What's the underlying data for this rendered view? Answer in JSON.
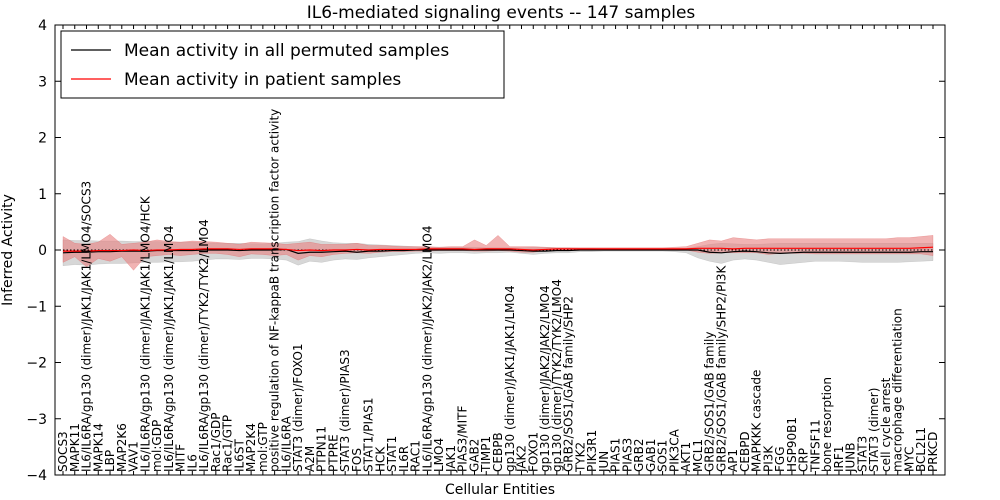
{
  "chart_data": {
    "type": "line",
    "title": "IL6-mediated signaling events -- 147 samples",
    "xlabel": "Cellular Entities",
    "ylabel": "Inferred Activity",
    "ylim": [
      -4,
      4
    ],
    "yticks": [
      -4,
      -3,
      -2,
      -1,
      0,
      1,
      2,
      3,
      4
    ],
    "ytick_labels": [
      "−4",
      "−3",
      "−2",
      "−1",
      "0",
      "1",
      "2",
      "3",
      "4"
    ],
    "legend_position": "top-left",
    "colors": {
      "permuted": "#000000",
      "patient": "#ff0000",
      "patient_band": "#e88080",
      "permuted_band": "#b0b0b0"
    },
    "categories": [
      "SOCS3",
      "MAPK11",
      "IL6/IL6RA/gp130 (dimer)/JAK1/JAK1/LMO4/SOCS3",
      "MAPK14",
      "LBP",
      "MAP2K6",
      "VAV1",
      "IL6/IL6RA/gp130 (dimer)/JAK1/JAK1/LMO4/HCK",
      "mol:GDP",
      "IL6/IL6RA/gp130 (dimer)/JAK1/JAK1/LMO4",
      "MITF",
      "IL6",
      "IL6/IL6RA/gp130 (dimer)/TYK2/TYK2/LMO4",
      "Rac1/GDP",
      "Rac1/GTP",
      "IL6ST",
      "MAP2K4",
      "mol:GTP",
      "positive regulation of NF-kappaB transcription factor activity",
      "IL6/IL6RA",
      "STAT3 (dimer)/FOXO1",
      "A2M",
      "PTPN11",
      "PTPRE",
      "STAT3 (dimer)/PIAS3",
      "FOS",
      "STAT1/PIAS1",
      "HCK",
      "STAT1",
      "IL6R",
      "RAC1",
      "IL6/IL6RA/gp130 (dimer)/JAK2/JAK2/LMO4",
      "LMO4",
      "JAK1",
      "PIAS3/MITF",
      "GAB2",
      "TIMP1",
      "CEBPB",
      "gp130 (dimer)/JAK1/JAK1/LMO4",
      "JAK2",
      "FOXO1",
      "gp130 (dimer)/JAK2/JAK2/LMO4",
      "gp130 (dimer)/TYK2/TYK2/LMO4",
      "GRB2/SOS1/GAB family/SHP2",
      "TYK2",
      "PIK3R1",
      "JUN",
      "PIAS1",
      "PIAS3",
      "GRB2",
      "GAB1",
      "SOS1",
      "PIK3CA",
      "AKT1",
      "MCL1",
      "GRB2/SOS1/GAB family",
      "GRB2/SOS1/GAB family/SHP2/PI3K",
      "AP1",
      "CEBPD",
      "MAPKKK cascade",
      "PI3K",
      "FGG",
      "HSP90B1",
      "CRP",
      "TNFSF11",
      "bone resorption",
      "IRF1",
      "JUNB",
      "STAT3",
      "STAT3 (dimer)",
      "cell cycle arrest",
      "macrophage differentiation",
      "MYC",
      "BCL2L1",
      "PRKCD"
    ],
    "series": [
      {
        "name": "Mean activity in all permuted samples",
        "values": [
          -0.05,
          -0.04,
          -0.04,
          -0.03,
          -0.03,
          -0.02,
          -0.02,
          -0.02,
          -0.01,
          -0.01,
          -0.01,
          -0.01,
          0,
          0,
          0,
          -0.01,
          0,
          0,
          0,
          0.01,
          -0.06,
          -0.04,
          -0.04,
          -0.03,
          -0.02,
          -0.04,
          -0.02,
          -0.02,
          -0.01,
          -0.01,
          0,
          0,
          0,
          0,
          0,
          0,
          0,
          0,
          0,
          -0.01,
          -0.02,
          -0.02,
          -0.01,
          -0.01,
          0,
          0,
          0,
          0,
          0,
          0,
          0,
          0,
          0,
          0,
          0,
          -0.04,
          -0.05,
          -0.03,
          -0.02,
          -0.03,
          -0.05,
          -0.06,
          -0.05,
          -0.04,
          -0.04,
          -0.04,
          -0.04,
          -0.04,
          -0.04,
          -0.04,
          -0.04,
          -0.04,
          -0.04,
          -0.03,
          -0.03
        ],
        "lower": [
          -0.28,
          -0.26,
          -0.27,
          -0.25,
          -0.24,
          -0.24,
          -0.23,
          -0.22,
          -0.22,
          -0.21,
          -0.21,
          -0.2,
          -0.18,
          -0.16,
          -0.16,
          -0.17,
          -0.15,
          -0.15,
          -0.16,
          -0.18,
          -0.27,
          -0.2,
          -0.22,
          -0.18,
          -0.16,
          -0.17,
          -0.14,
          -0.12,
          -0.1,
          -0.08,
          -0.06,
          -0.05,
          -0.06,
          -0.05,
          -0.05,
          -0.06,
          -0.05,
          -0.05,
          -0.04,
          -0.06,
          -0.08,
          -0.06,
          -0.05,
          -0.05,
          -0.03,
          -0.03,
          -0.02,
          -0.02,
          -0.02,
          -0.02,
          -0.02,
          -0.02,
          -0.03,
          -0.05,
          -0.14,
          -0.2,
          -0.24,
          -0.18,
          -0.16,
          -0.18,
          -0.22,
          -0.26,
          -0.24,
          -0.22,
          -0.2,
          -0.2,
          -0.2,
          -0.21,
          -0.22,
          -0.22,
          -0.22,
          -0.22,
          -0.21,
          -0.2,
          -0.19
        ],
        "upper": [
          0.18,
          0.17,
          0.17,
          0.16,
          0.16,
          0.16,
          0.15,
          0.15,
          0.15,
          0.14,
          0.14,
          0.14,
          0.13,
          0.12,
          0.12,
          0.12,
          0.11,
          0.11,
          0.12,
          0.14,
          0.15,
          0.2,
          0.16,
          0.13,
          0.12,
          0.12,
          0.1,
          0.09,
          0.08,
          0.07,
          0.06,
          0.05,
          0.05,
          0.05,
          0.05,
          0.05,
          0.04,
          0.04,
          0.04,
          0.04,
          0.05,
          0.05,
          0.04,
          0.04,
          0.03,
          0.03,
          0.02,
          0.02,
          0.02,
          0.02,
          0.02,
          0.02,
          0.02,
          0.03,
          0.06,
          0.1,
          0.12,
          0.11,
          0.1,
          0.1,
          0.11,
          0.12,
          0.12,
          0.12,
          0.12,
          0.12,
          0.12,
          0.12,
          0.12,
          0.12,
          0.12,
          0.12,
          0.12,
          0.12,
          0.12
        ]
      },
      {
        "name": "Mean activity in patient samples",
        "values": [
          -0.02,
          -0.02,
          -0.02,
          -0.01,
          -0.01,
          -0.01,
          0,
          -0.01,
          0,
          0,
          0.01,
          0.01,
          0.02,
          0.02,
          0.02,
          0.01,
          0.02,
          0.02,
          0.02,
          0.01,
          -0.01,
          0,
          -0.01,
          0,
          0,
          0.01,
          0,
          0.01,
          0.01,
          0.01,
          0.01,
          0.02,
          0.02,
          0.02,
          0.02,
          0.01,
          0.02,
          0.02,
          0.02,
          0.01,
          0,
          0.01,
          0.02,
          0.02,
          0.02,
          0.02,
          0.02,
          0.02,
          0.02,
          0.02,
          0.02,
          0.02,
          0.02,
          0.02,
          0.03,
          0.03,
          0.03,
          0.02,
          0.03,
          0.03,
          0.03,
          0.03,
          0.03,
          0.03,
          0.03,
          0.03,
          0.03,
          0.03,
          0.03,
          0.03,
          0.03,
          0.03,
          0.03,
          0.04,
          0.05
        ],
        "lower": [
          -0.22,
          -0.12,
          -0.3,
          -0.15,
          -0.2,
          -0.12,
          -0.36,
          -0.12,
          -0.1,
          -0.08,
          -0.1,
          -0.08,
          -0.06,
          -0.06,
          -0.08,
          -0.12,
          -0.07,
          -0.08,
          -0.1,
          -0.08,
          -0.18,
          -0.1,
          -0.12,
          -0.08,
          -0.06,
          -0.05,
          -0.06,
          -0.04,
          -0.03,
          -0.03,
          -0.02,
          -0.02,
          -0.01,
          -0.01,
          -0.01,
          -0.02,
          -0.02,
          -0.01,
          -0.02,
          -0.04,
          -0.04,
          -0.01,
          0,
          0,
          0,
          0,
          0,
          0,
          0,
          0,
          0,
          0,
          0,
          0,
          -0.04,
          -0.06,
          -0.05,
          -0.05,
          -0.05,
          -0.05,
          -0.08,
          -0.06,
          -0.06,
          -0.06,
          -0.07,
          -0.07,
          -0.07,
          -0.07,
          -0.07,
          -0.07,
          -0.07,
          -0.07,
          -0.07,
          -0.07,
          -0.1
        ],
        "upper": [
          0.24,
          0.12,
          0.1,
          0.14,
          0.28,
          0.1,
          0.12,
          0.14,
          0.18,
          0.15,
          0.14,
          0.16,
          0.15,
          0.14,
          0.12,
          0.1,
          0.14,
          0.13,
          0.12,
          0.1,
          0.12,
          0.14,
          0.1,
          0.1,
          0.1,
          0.12,
          0.08,
          0.08,
          0.07,
          0.06,
          0.06,
          0.06,
          0.05,
          0.06,
          0.06,
          0.18,
          0.08,
          0.26,
          0.06,
          0.06,
          0.06,
          0.05,
          0.04,
          0.04,
          0.04,
          0.04,
          0.04,
          0.04,
          0.04,
          0.04,
          0.04,
          0.04,
          0.05,
          0.06,
          0.12,
          0.18,
          0.16,
          0.22,
          0.2,
          0.18,
          0.2,
          0.2,
          0.2,
          0.2,
          0.2,
          0.2,
          0.2,
          0.2,
          0.2,
          0.2,
          0.2,
          0.22,
          0.22,
          0.24,
          0.26
        ]
      }
    ]
  }
}
